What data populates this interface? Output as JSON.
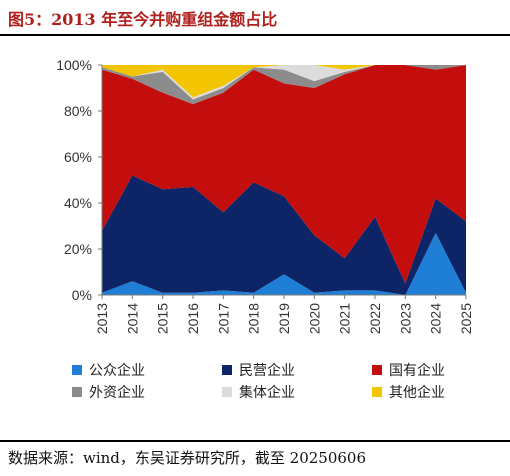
{
  "title": "图5：2013 年至今并购重组金额占比",
  "source": "数据来源：wind，东吴证券研究所，截至 20250606",
  "colors": {
    "public": "#1f7ed6",
    "private": "#0d2566",
    "state": "#c40d0d",
    "foreign": "#8c8c8c",
    "collective": "#dcdcdc",
    "other": "#f2c500"
  },
  "chart_data": {
    "type": "area",
    "stacked": true,
    "percent": true,
    "categories": [
      "2013",
      "2014",
      "2015",
      "2016",
      "2017",
      "2018",
      "2019",
      "2020",
      "2021",
      "2022",
      "2023",
      "2024",
      "2025"
    ],
    "ylim": [
      0,
      100
    ],
    "yticks": [
      "0%",
      "20%",
      "40%",
      "60%",
      "80%",
      "100%"
    ],
    "series": [
      {
        "name": "公众企业",
        "color_key": "public",
        "values": [
          1,
          6,
          1,
          1,
          2,
          1,
          9,
          1,
          2,
          2,
          0,
          27,
          1
        ]
      },
      {
        "name": "民营企业",
        "color_key": "private",
        "values": [
          27,
          46,
          45,
          46,
          34,
          48,
          34,
          25,
          14,
          32,
          5,
          15,
          31
        ]
      },
      {
        "name": "国有企业",
        "color_key": "state",
        "values": [
          70,
          42,
          42,
          36,
          52,
          49,
          49,
          64,
          80,
          66,
          95,
          56,
          68
        ]
      },
      {
        "name": "外资企业",
        "color_key": "foreign",
        "values": [
          1,
          1,
          9,
          2,
          2,
          1,
          6,
          3,
          1,
          0,
          0,
          2,
          0
        ]
      },
      {
        "name": "集体企业",
        "color_key": "collective",
        "values": [
          0,
          0,
          1,
          1,
          1,
          0,
          2,
          7,
          1,
          0,
          0,
          0,
          0
        ]
      },
      {
        "name": "其他企业",
        "color_key": "other",
        "values": [
          1,
          5,
          2,
          14,
          9,
          1,
          0,
          0,
          2,
          0,
          0,
          0,
          0
        ]
      }
    ],
    "legend_position": "bottom"
  }
}
